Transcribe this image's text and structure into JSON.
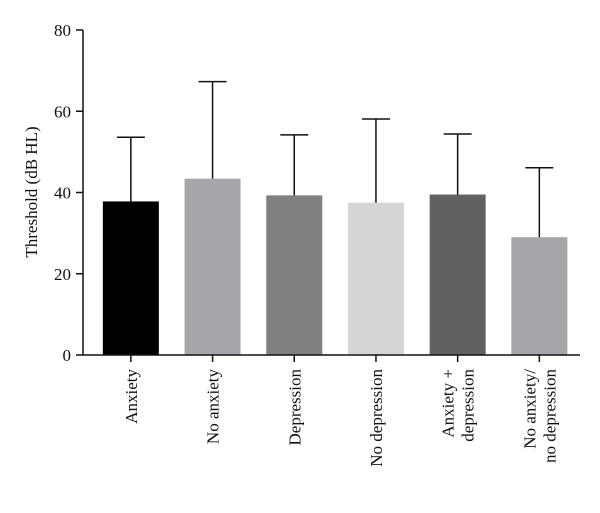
{
  "chart_data": {
    "type": "bar",
    "title": "",
    "xlabel": "",
    "ylabel": "Threshold (dB HL)",
    "ylim": [
      0,
      80
    ],
    "yticks": [
      0,
      20,
      40,
      60,
      80
    ],
    "grid": false,
    "categories": [
      [
        "Anxiety"
      ],
      [
        "No anxiety"
      ],
      [
        "Depression"
      ],
      [
        "No depression"
      ],
      [
        "Anxiety +",
        "depression"
      ],
      [
        "No anxiety/",
        "no depression"
      ]
    ],
    "values": [
      37.8,
      43.4,
      39.3,
      37.5,
      39.5,
      29.0
    ],
    "error_upper": [
      53.6,
      67.3,
      54.2,
      58.1,
      54.4,
      46.1
    ],
    "colors": [
      "#000000",
      "#a5a5aa",
      "#808080",
      "#d5d5d5",
      "#616161",
      "#a5a5aa"
    ]
  }
}
